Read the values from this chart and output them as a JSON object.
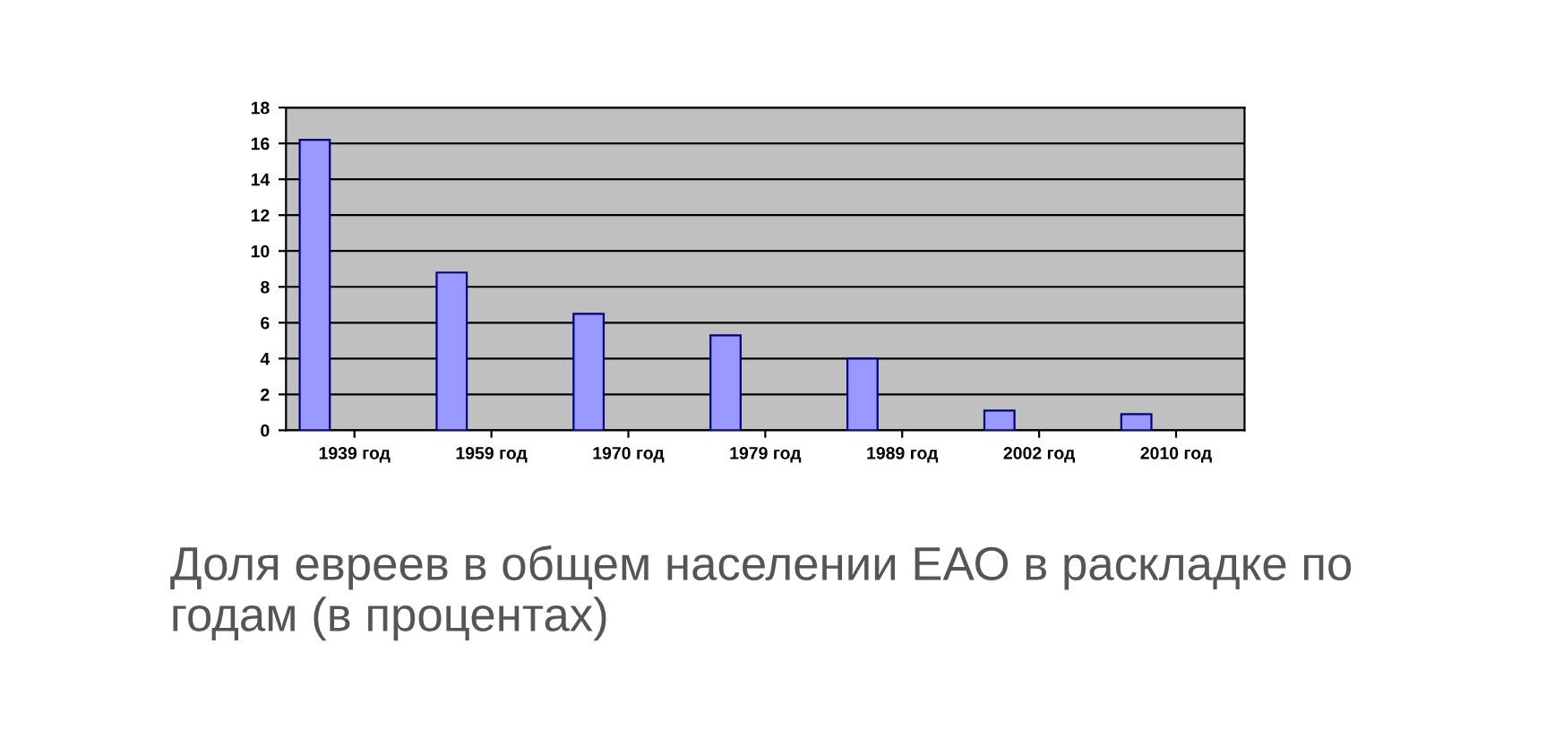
{
  "chart_data": {
    "type": "bar",
    "categories": [
      "1939 год",
      "1959 год",
      "1970 год",
      "1979 год",
      "1989 год",
      "2002 год",
      "2010 год"
    ],
    "values": [
      16.2,
      8.8,
      6.5,
      5.3,
      4.0,
      1.1,
      0.9
    ],
    "color": "#9999ff",
    "ylim": [
      0,
      18
    ],
    "yticks": [
      0,
      2,
      4,
      6,
      8,
      10,
      12,
      14,
      16,
      18
    ],
    "grid": "y",
    "annotations": [
      "Доля евреев в общем населении ЕАО в раскладке по годам (в процентах)"
    ]
  }
}
